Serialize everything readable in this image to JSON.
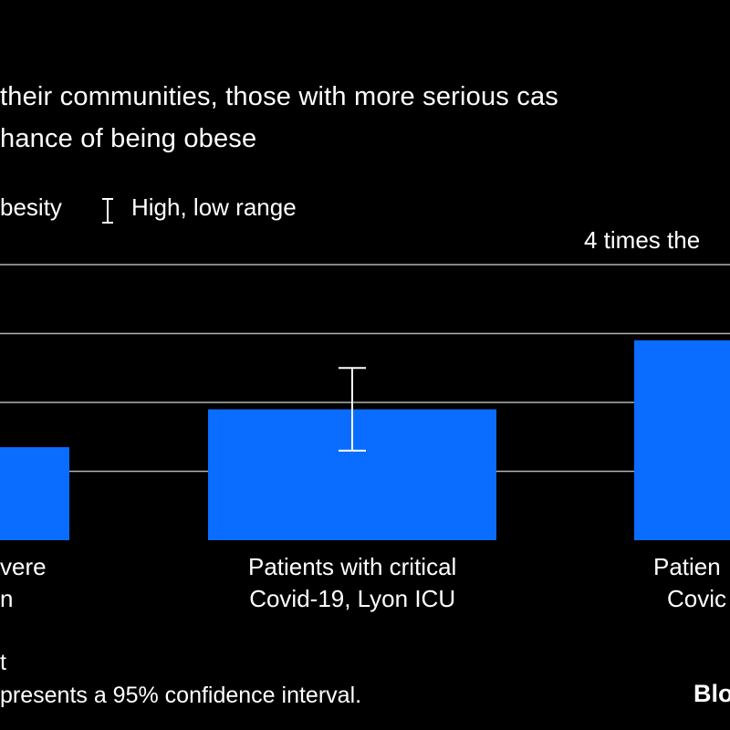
{
  "title_lines": [
    "their communities, those with more serious cas",
    "hance of being obese"
  ],
  "legend": {
    "series_label": "besity",
    "range_label": "High, low range"
  },
  "annotation": "4 times the",
  "footer": {
    "line1": "t",
    "line2": "presents a 95% confidence interval."
  },
  "brand": "Blo",
  "colors": {
    "bar": "#0a6dff",
    "background": "#000000",
    "gridline": "#b3b3b3",
    "text": "#ffffff"
  },
  "chart_data": {
    "type": "bar",
    "categories": [
      [
        "vere",
        "n"
      ],
      [
        "Patients with critical",
        "Covid-19, Lyon ICU"
      ],
      [
        "Patien",
        "Covic"
      ]
    ],
    "values": [
      1.35,
      1.9,
      2.9
    ],
    "error_bars": [
      null,
      {
        "low": 1.3,
        "high": 2.5
      },
      null
    ],
    "ylim": [
      0,
      4
    ],
    "gridlines": [
      1,
      2,
      3,
      4
    ],
    "grid": true
  }
}
